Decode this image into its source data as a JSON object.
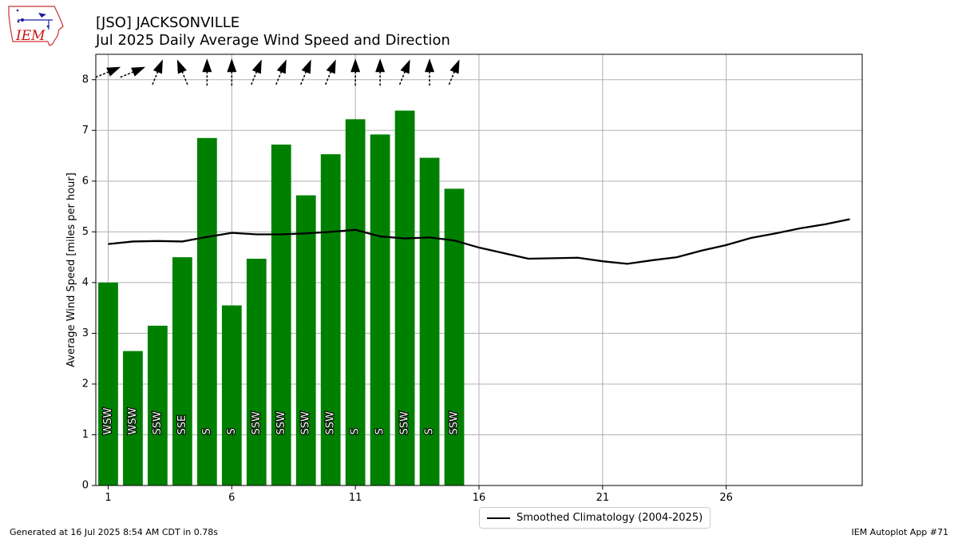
{
  "header": {
    "title_line1": "[JSO] JACKSONVILLE",
    "title_line2": "Jul 2025 Daily Average Wind Speed and Direction"
  },
  "logo": {
    "text": "IEM",
    "icon": "iem-iowa-logo"
  },
  "footer": {
    "left": "Generated at 16 Jul 2025 8:54 AM CDT in 0.78s",
    "right": "IEM Autoplot App #71"
  },
  "chart_data": {
    "type": "bar",
    "ylabel": "Average Wind Speed [miles per hour]",
    "xlabel": "",
    "xlim": [
      0.5,
      31.5
    ],
    "ylim": [
      0,
      8.5
    ],
    "xticks": [
      1,
      6,
      11,
      16,
      21,
      26
    ],
    "yticks": [
      0,
      1,
      2,
      3,
      4,
      5,
      6,
      7,
      8
    ],
    "grid": true,
    "legend_position": "bottom-center",
    "colors": {
      "bars": "#008000",
      "climatology": "#000000",
      "arrows": "#000000",
      "grid": "#b0b0b0"
    },
    "bars": {
      "days": [
        1,
        2,
        3,
        4,
        5,
        6,
        7,
        8,
        9,
        10,
        11,
        12,
        13,
        14,
        15
      ],
      "values": [
        4.0,
        2.65,
        3.15,
        4.5,
        6.85,
        3.55,
        4.47,
        6.72,
        5.72,
        6.53,
        7.22,
        6.92,
        7.39,
        6.46,
        5.85
      ],
      "directions": [
        "WSW",
        "WSW",
        "SSW",
        "SSE",
        "S",
        "S",
        "SSW",
        "SSW",
        "SSW",
        "SSW",
        "S",
        "S",
        "SSW",
        "S",
        "SSW"
      ],
      "direction_degrees": [
        247.5,
        247.5,
        202.5,
        157.5,
        180,
        180,
        202.5,
        202.5,
        202.5,
        202.5,
        180,
        180,
        202.5,
        180,
        202.5
      ]
    },
    "series": [
      {
        "name": "Smoothed Climatology (2004-2025)",
        "type": "line",
        "x": [
          1,
          2,
          3,
          4,
          5,
          6,
          7,
          8,
          9,
          10,
          11,
          12,
          13,
          14,
          15,
          16,
          17,
          18,
          19,
          20,
          21,
          22,
          23,
          24,
          25,
          26,
          27,
          28,
          29,
          30,
          31
        ],
        "y": [
          4.76,
          4.81,
          4.82,
          4.81,
          4.9,
          4.98,
          4.95,
          4.95,
          4.97,
          5.0,
          5.04,
          4.91,
          4.87,
          4.89,
          4.83,
          4.69,
          4.58,
          4.47,
          4.48,
          4.49,
          4.42,
          4.37,
          4.44,
          4.5,
          4.63,
          4.74,
          4.88,
          4.97,
          5.07,
          5.15,
          5.25
        ]
      }
    ]
  }
}
